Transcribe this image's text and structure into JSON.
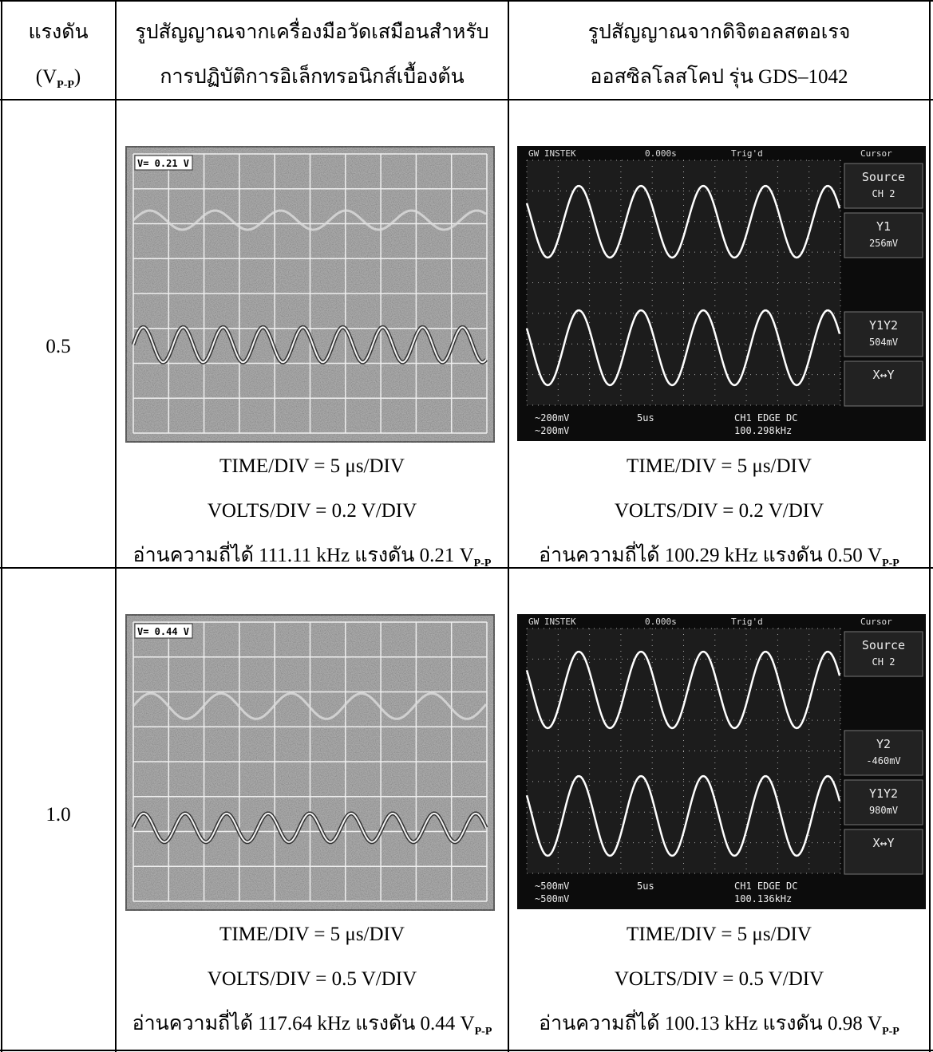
{
  "table": {
    "header": {
      "voltage": {
        "title": "แรงดัน",
        "unit_open": "(V",
        "unit_sub": "P-P",
        "unit_close": ")"
      },
      "virtual": [
        "รูปสัญญาณจากเครื่องมือวัดเสมือนสำหรับ",
        "การปฏิบัติการอิเล็กทรอนิกส์เบื้องต้น"
      ],
      "digital": [
        "รูปสัญญาณจากดิจิตอลสตอเรจ",
        "ออสซิลโลสโคป รุ่น GDS–1042"
      ]
    },
    "rows": [
      {
        "voltage": "0.5",
        "virtual": {
          "screen_label": "V= 0.21 V",
          "captions": [
            "TIME/DIV = 5 μs/DIV",
            "VOLTS/DIV = 0.2 V/DIV"
          ],
          "reading": "อ่านความถี่ได้ 111.11 kHz แรงดัน 0.21 V",
          "reading_sub": "P-P"
        },
        "digital": {
          "screen": {
            "brand": "GW INSTEK",
            "time": "0.000s",
            "trigger": "Trig'd",
            "menu_title": "Cursor",
            "menu": [
              {
                "label": "Source",
                "value": "CH 2"
              },
              {
                "label": "Y1",
                "value": "256mV"
              },
              {
                "label": "Y1Y2",
                "value": "504mV"
              },
              {
                "label": "X↔Y"
              }
            ],
            "ch1": "~200mV",
            "ch2": "~200mV",
            "timebase": "5us",
            "trigger_info": "CH1  EDGE  DC",
            "frequency": "100.298kHz"
          },
          "captions": [
            "TIME/DIV = 5 μs/DIV",
            "VOLTS/DIV = 0.2 V/DIV"
          ],
          "reading": "อ่านความถี่ได้ 100.29 kHz แรงดัน 0.50 V",
          "reading_sub": "P-P"
        }
      },
      {
        "voltage": "1.0",
        "virtual": {
          "screen_label": "V= 0.44 V",
          "captions": [
            "TIME/DIV = 5 μs/DIV",
            "VOLTS/DIV = 0.5 V/DIV"
          ],
          "reading": "อ่านความถี่ได้ 117.64 kHz แรงดัน 0.44 V",
          "reading_sub": "P-P"
        },
        "digital": {
          "screen": {
            "brand": "GW INSTEK",
            "time": "0.000s",
            "trigger": "Trig'd",
            "menu_title": "Cursor",
            "menu": [
              {
                "label": "Source",
                "value": "CH 2"
              },
              {
                "label": "Y2",
                "value": "-460mV"
              },
              {
                "label": "Y1Y2",
                "value": "980mV"
              },
              {
                "label": "X↔Y"
              }
            ],
            "ch1": "~500mV",
            "ch2": "~500mV",
            "timebase": "5us",
            "trigger_info": "CH1  EDGE  DC",
            "frequency": "100.136kHz"
          },
          "captions": [
            "TIME/DIV = 5 μs/DIV",
            "VOLTS/DIV = 0.5 V/DIV"
          ],
          "reading": "อ่านความถี่ได้ 100.13 kHz แรงดัน 0.98 V",
          "reading_sub": "P-P"
        }
      }
    ]
  }
}
